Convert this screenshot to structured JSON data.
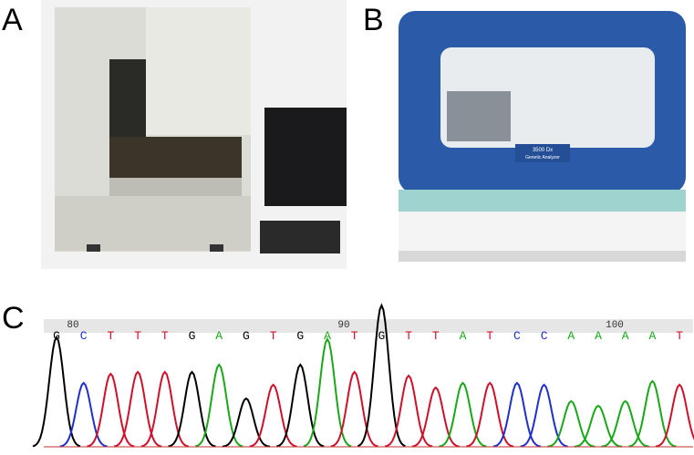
{
  "panels": [
    {
      "label": "A"
    },
    {
      "label": "B",
      "screen_text": [
        "3500 Dx",
        "Genetic Analyzer"
      ]
    },
    {
      "label": "C"
    }
  ],
  "chromatogram": {
    "ruler": [
      "80",
      "90",
      "100"
    ],
    "bases": [
      "G",
      "C",
      "T",
      "T",
      "T",
      "G",
      "A",
      "G",
      "T",
      "G",
      "A",
      "T",
      "G",
      "T",
      "T",
      "A",
      "T",
      "C",
      "C",
      "A",
      "A",
      "A",
      "A",
      "T"
    ],
    "base_colors": {
      "G": "#000000",
      "C": "#1f2fd0",
      "T": "#d0102a",
      "A": "#18a818"
    }
  }
}
